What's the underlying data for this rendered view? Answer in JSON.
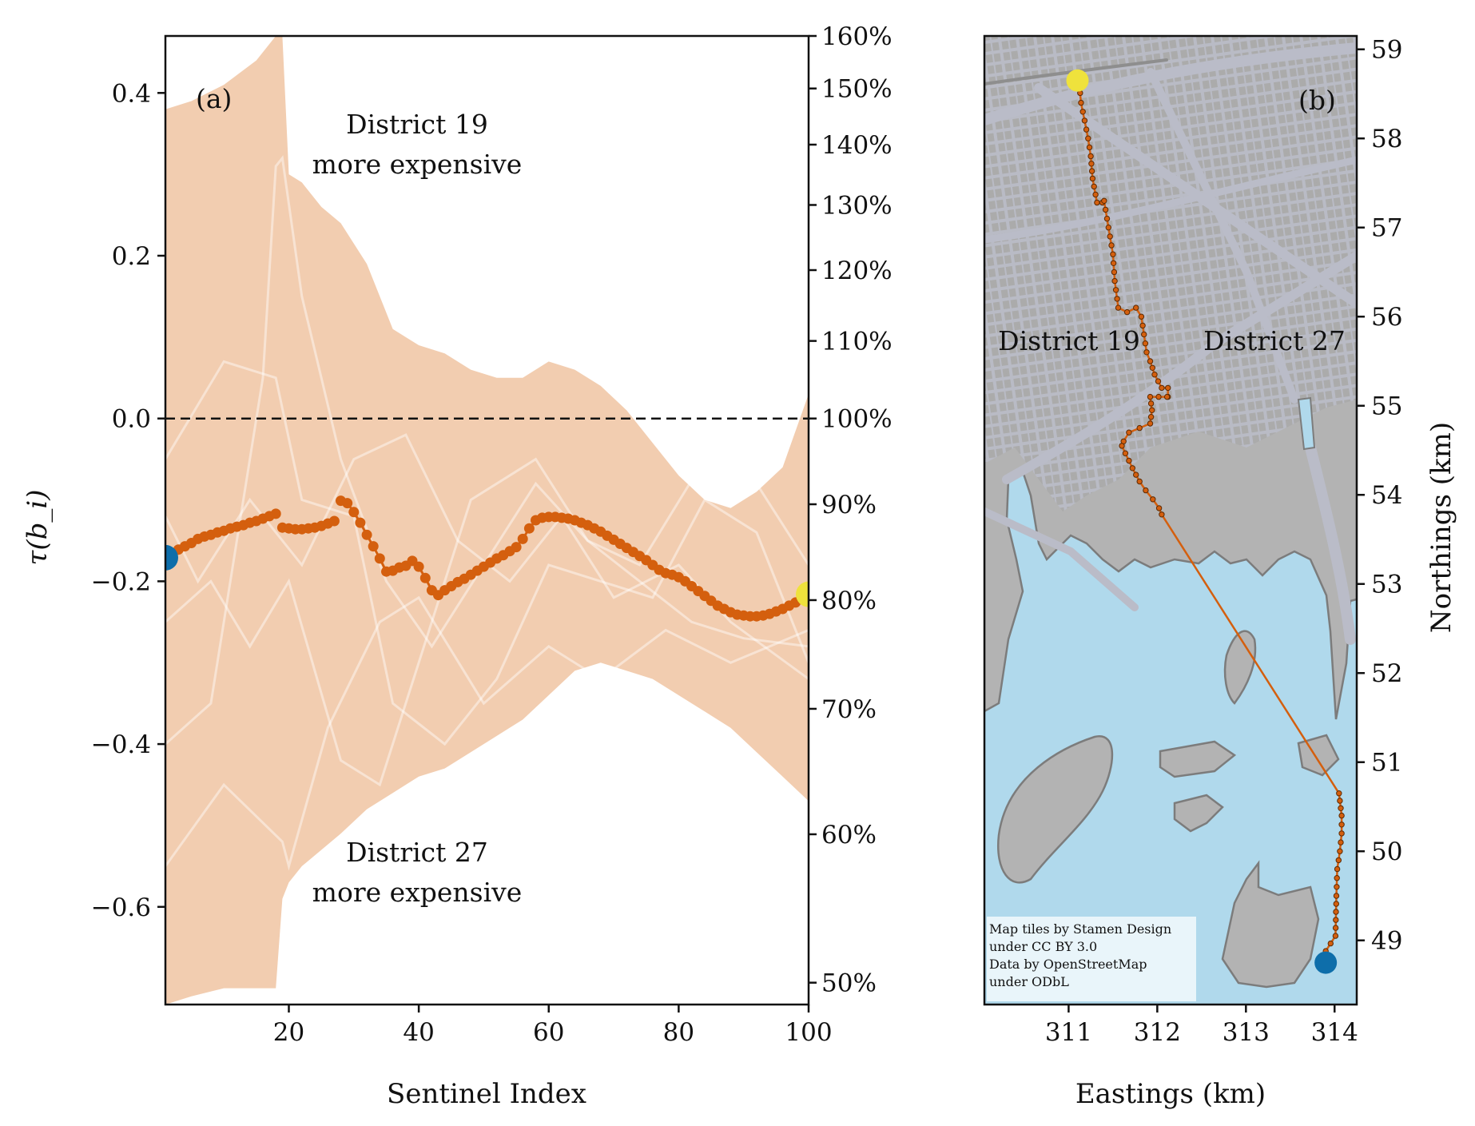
{
  "chart_data": [
    {
      "type": "line",
      "panel_label": "(a)",
      "xlabel": "Sentinel Index",
      "ylabel": "τ(b_i)",
      "xlim": [
        1,
        100
      ],
      "ylim": [
        -0.72,
        0.47
      ],
      "x_ticks": [
        20,
        40,
        60,
        80,
        100
      ],
      "y_ticks": [
        -0.6,
        -0.4,
        -0.2,
        0.0,
        0.2,
        0.4
      ],
      "y_tick_labels": [
        "−0.6",
        "−0.4",
        "−0.2",
        "0.0",
        "0.2",
        "0.4"
      ],
      "secondary_y_ticks": [
        "50%",
        "60%",
        "70%",
        "80%",
        "90%",
        "100%",
        "110%",
        "120%",
        "130%",
        "140%",
        "150%",
        "160%"
      ],
      "reference_line": 0.0,
      "annotations": [
        "District 19",
        "more expensive",
        "District 27",
        "more expensive"
      ],
      "colors": {
        "band": "#f2cdb0",
        "trace": "#d45f0e",
        "start": "#0e6eaa",
        "end": "#efe23c",
        "light_traces": "#ffffff"
      },
      "band": {
        "x": [
          1,
          5,
          10,
          15,
          18,
          19,
          20,
          22,
          25,
          28,
          32,
          36,
          40,
          44,
          48,
          52,
          56,
          60,
          64,
          68,
          72,
          76,
          80,
          84,
          88,
          92,
          96,
          100
        ],
        "upper": [
          0.38,
          0.39,
          0.41,
          0.44,
          0.47,
          0.47,
          0.3,
          0.29,
          0.26,
          0.24,
          0.19,
          0.11,
          0.09,
          0.08,
          0.06,
          0.05,
          0.05,
          0.07,
          0.06,
          0.04,
          0.01,
          -0.03,
          -0.07,
          -0.1,
          -0.11,
          -0.09,
          -0.06,
          0.03
        ],
        "lower": [
          -0.72,
          -0.71,
          -0.7,
          -0.7,
          -0.7,
          -0.59,
          -0.57,
          -0.55,
          -0.53,
          -0.51,
          -0.48,
          -0.46,
          -0.44,
          -0.43,
          -0.41,
          -0.39,
          -0.37,
          -0.34,
          -0.31,
          -0.3,
          -0.31,
          -0.32,
          -0.34,
          -0.36,
          -0.38,
          -0.41,
          -0.44,
          -0.47
        ]
      },
      "series": [
        {
          "x": [
            1,
            2,
            3,
            4,
            5,
            6,
            7,
            8,
            9,
            10,
            11,
            12,
            13,
            14,
            15,
            16,
            17,
            18
          ],
          "y": [
            -0.171,
            -0.166,
            -0.161,
            -0.157,
            -0.153,
            -0.148,
            -0.145,
            -0.143,
            -0.14,
            -0.138,
            -0.135,
            -0.133,
            -0.131,
            -0.128,
            -0.126,
            -0.123,
            -0.12,
            -0.117
          ]
        },
        {
          "x": [
            19,
            20,
            21,
            22,
            23,
            24,
            25,
            26,
            27
          ],
          "y": [
            -0.134,
            -0.135,
            -0.136,
            -0.136,
            -0.135,
            -0.134,
            -0.132,
            -0.129,
            -0.126
          ]
        },
        {
          "x": [
            28,
            29,
            30,
            31,
            32,
            33,
            34,
            35,
            36,
            37,
            38,
            39,
            40,
            41,
            42,
            43,
            44,
            45,
            46,
            47,
            48,
            49,
            50,
            51,
            52,
            53,
            54,
            55,
            56,
            57,
            58,
            59,
            60,
            61,
            62,
            63,
            64,
            65,
            66,
            67,
            68,
            69,
            70,
            71,
            72,
            73,
            74,
            75,
            76,
            77,
            78,
            79,
            80,
            81,
            82,
            83,
            84,
            85,
            86,
            87,
            88,
            89,
            90,
            91,
            92,
            93,
            94,
            95,
            96,
            97,
            98,
            99,
            100
          ],
          "y": [
            -0.101,
            -0.104,
            -0.115,
            -0.128,
            -0.143,
            -0.157,
            -0.172,
            -0.188,
            -0.187,
            -0.183,
            -0.181,
            -0.175,
            -0.182,
            -0.196,
            -0.211,
            -0.217,
            -0.211,
            -0.206,
            -0.201,
            -0.197,
            -0.192,
            -0.187,
            -0.182,
            -0.177,
            -0.172,
            -0.168,
            -0.163,
            -0.158,
            -0.148,
            -0.135,
            -0.125,
            -0.122,
            -0.121,
            -0.121,
            -0.122,
            -0.123,
            -0.125,
            -0.128,
            -0.131,
            -0.135,
            -0.139,
            -0.144,
            -0.149,
            -0.154,
            -0.159,
            -0.164,
            -0.169,
            -0.174,
            -0.18,
            -0.186,
            -0.19,
            -0.192,
            -0.195,
            -0.2,
            -0.206,
            -0.212,
            -0.218,
            -0.224,
            -0.23,
            -0.234,
            -0.238,
            -0.241,
            -0.242,
            -0.243,
            -0.243,
            -0.242,
            -0.24,
            -0.237,
            -0.234,
            -0.23,
            -0.226,
            -0.222,
            -0.216
          ]
        }
      ],
      "light_traces": [
        {
          "x": [
            1,
            8,
            12,
            16,
            18,
            19,
            22,
            28,
            35,
            42,
            50,
            58,
            66,
            74,
            82,
            90,
            100
          ],
          "y": [
            -0.4,
            -0.35,
            -0.15,
            0.05,
            0.31,
            0.32,
            0.15,
            -0.05,
            -0.2,
            -0.28,
            -0.18,
            -0.08,
            -0.15,
            -0.2,
            -0.25,
            -0.27,
            -0.28
          ]
        },
        {
          "x": [
            1,
            10,
            18,
            22,
            30,
            36,
            44,
            52,
            60,
            68,
            76,
            84,
            92,
            100
          ],
          "y": [
            -0.05,
            0.07,
            0.05,
            -0.1,
            -0.12,
            -0.35,
            -0.4,
            -0.32,
            -0.18,
            -0.2,
            -0.22,
            -0.1,
            -0.14,
            -0.3
          ]
        },
        {
          "x": [
            1,
            8,
            14,
            20,
            28,
            34,
            40,
            48,
            58,
            66,
            74,
            84,
            92,
            100
          ],
          "y": [
            -0.25,
            -0.2,
            -0.28,
            -0.2,
            -0.42,
            -0.45,
            -0.3,
            -0.1,
            -0.05,
            -0.15,
            -0.18,
            -0.05,
            -0.08,
            -0.18
          ]
        },
        {
          "x": [
            1,
            6,
            14,
            22,
            30,
            38,
            46,
            54,
            62,
            70,
            80,
            88,
            100
          ],
          "y": [
            -0.12,
            -0.2,
            -0.1,
            -0.18,
            -0.05,
            -0.02,
            -0.15,
            -0.2,
            -0.12,
            -0.22,
            -0.18,
            -0.25,
            -0.32
          ]
        },
        {
          "x": [
            1,
            10,
            19,
            20,
            26,
            34,
            40,
            50,
            60,
            68,
            78,
            88,
            100
          ],
          "y": [
            -0.55,
            -0.45,
            -0.52,
            -0.55,
            -0.38,
            -0.25,
            -0.22,
            -0.35,
            -0.28,
            -0.32,
            -0.26,
            -0.3,
            -0.26
          ]
        }
      ],
      "markers": {
        "start": {
          "x": 1,
          "y": -0.171
        },
        "end": {
          "x": 100,
          "y": -0.216
        }
      }
    },
    {
      "type": "map",
      "panel_label": "(b)",
      "xlabel": "Eastings (km)",
      "ylabel": "Northings (km)",
      "xlim": [
        310.05,
        314.25
      ],
      "ylim": [
        48.28,
        59.15
      ],
      "x_ticks": [
        311,
        312,
        313,
        314
      ],
      "y_ticks": [
        49,
        50,
        51,
        52,
        53,
        54,
        55,
        56,
        57,
        58,
        59
      ],
      "region_labels": [
        "District 19",
        "District 27"
      ],
      "credit_lines": [
        "Map tiles by Stamen Design",
        "under CC BY 3.0",
        "Data by OpenStreetMap",
        "under ODbL"
      ],
      "colors": {
        "water": "#b0d9ec",
        "land": "#b3b3b3",
        "streets": "#babcc8",
        "blocks": "#a9a9a9",
        "route": "#d45f0e",
        "start": "#0e6eaa",
        "end": "#efe23c"
      },
      "route": {
        "x": [
          311.12,
          311.14,
          311.18,
          311.22,
          311.25,
          311.27,
          311.32,
          311.38,
          311.4,
          311.45,
          311.5,
          311.52,
          311.56,
          311.66,
          311.76,
          311.82,
          311.85,
          311.88,
          311.92,
          311.97,
          312.05,
          312.12,
          312.12,
          312.11,
          311.92,
          311.94,
          311.92,
          311.8,
          311.68,
          311.62,
          311.6,
          311.72,
          311.8,
          311.87,
          311.95,
          312.02,
          312.05,
          314.05,
          314.08,
          314.08,
          314.06,
          314.03,
          314.02,
          314.01,
          313.9
        ],
        "y": [
          58.62,
          58.4,
          58.2,
          58.0,
          57.8,
          57.55,
          57.28,
          57.28,
          57.3,
          57.0,
          56.7,
          56.4,
          56.1,
          56.05,
          56.1,
          56.0,
          55.8,
          55.6,
          55.5,
          55.35,
          55.2,
          55.2,
          55.1,
          55.1,
          55.1,
          54.95,
          54.8,
          54.75,
          54.7,
          54.6,
          54.55,
          54.3,
          54.15,
          54.05,
          53.95,
          53.85,
          53.78,
          50.65,
          50.4,
          50.2,
          50.0,
          49.8,
          49.5,
          49.05,
          48.88
        ]
      },
      "markers": {
        "start": {
          "x": 313.9,
          "y": 48.75
        },
        "end": {
          "x": 311.1,
          "y": 58.65
        }
      }
    }
  ]
}
